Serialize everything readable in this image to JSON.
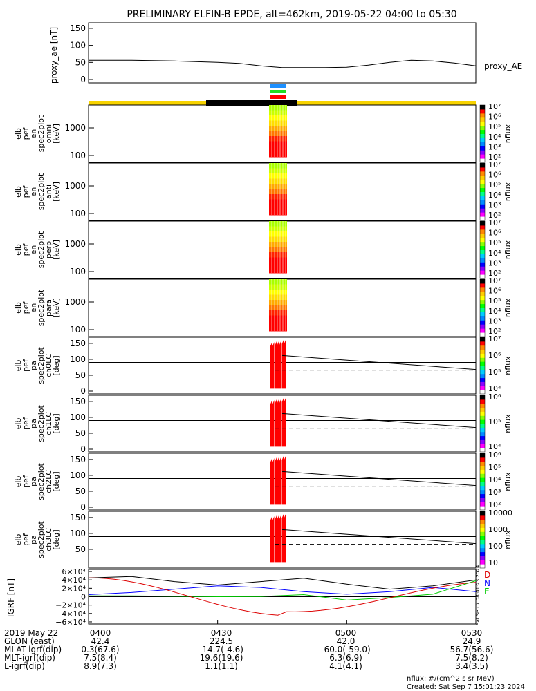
{
  "title": "PRELIMINARY ELFIN-B EPDE, alt=462km, 2019-05-22 04:00 to 05:30",
  "proxy_panel": {
    "ylabel": "proxy_ae\n[nT]",
    "series_label": "proxy_AE",
    "yticks": [
      "150",
      "100",
      "50",
      "0"
    ]
  },
  "status_bar": {
    "colors": {
      "yellow": "#f7d300",
      "black": "#000000",
      "blue": "#1e90ff",
      "green": "#22dd22",
      "red": "#ff0000"
    }
  },
  "spec_panels": [
    {
      "ylabel": [
        "elb",
        "pef",
        "en",
        "spec2plot",
        "omni",
        "[keV]"
      ],
      "yticks": [
        "1000",
        "100"
      ],
      "cbar_label": "nflux"
    },
    {
      "ylabel": [
        "elb",
        "pef",
        "en",
        "spec2plot",
        "anti",
        "[keV]"
      ],
      "yticks": [
        "1000",
        "100"
      ],
      "cbar_label": "nflux"
    },
    {
      "ylabel": [
        "elb",
        "pef",
        "en",
        "spec2plot",
        "perp",
        "[keV]"
      ],
      "yticks": [
        "1000",
        "100"
      ],
      "cbar_label": "nflux"
    },
    {
      "ylabel": [
        "elb",
        "pef",
        "en",
        "spec2plot",
        "para",
        "[keV]"
      ],
      "yticks": [
        "1000",
        "100"
      ],
      "cbar_label": "nflux"
    }
  ],
  "pa_panels": [
    {
      "ylabel": [
        "elb",
        "pef",
        "pa",
        "spec2plot",
        "ch0LC",
        "[deg]"
      ],
      "yticks": [
        "150",
        "100",
        "50",
        "0"
      ],
      "cbar_label": "nflux",
      "cbar_ticks": [
        "10⁷",
        "10⁶",
        "10⁵",
        "10⁴"
      ]
    },
    {
      "ylabel": [
        "elb",
        "pef",
        "pa",
        "spec2plot",
        "ch1LC",
        "[deg]"
      ],
      "yticks": [
        "150",
        "100",
        "50",
        "0"
      ],
      "cbar_label": "nflux",
      "cbar_ticks": [
        "10⁶",
        "10⁵",
        "10⁴"
      ]
    },
    {
      "ylabel": [
        "elb",
        "pef",
        "pa",
        "spec2plot",
        "ch2LC",
        "[deg]"
      ],
      "yticks": [
        "150",
        "100",
        "50",
        "0"
      ],
      "cbar_label": "nflux",
      "cbar_ticks": [
        "10⁶",
        "10⁵",
        "10⁴",
        "10³",
        "10²"
      ]
    },
    {
      "ylabel": [
        "elb",
        "pef",
        "pa",
        "spec2plot",
        "ch3LC",
        "[deg]"
      ],
      "yticks": [
        "150",
        "100",
        "50"
      ],
      "cbar_label": "nflux",
      "cbar_ticks": [
        "10000",
        "1000",
        "100",
        "10"
      ]
    }
  ],
  "spec_cbar_ticks": [
    "10⁷",
    "10⁶",
    "10⁵",
    "10⁴",
    "10³",
    "10²"
  ],
  "igrf_panel": {
    "ylabel": "IGRF\n[nT]",
    "yticks": [
      "6×10⁴",
      "4×10⁴",
      "2×10⁴",
      "0",
      "−2×10⁴",
      "−4×10⁴",
      "−6×10⁴"
    ],
    "legend": [
      "D",
      "N",
      "E"
    ],
    "stamp": "Sat Sep  7 08:01:23 2024"
  },
  "chart_data": [
    {
      "type": "line",
      "title": "PRELIMINARY ELFIN-B EPDE, alt=462km, 2019-05-22 04:00 to 05:30",
      "ylabel": "proxy_ae [nT]",
      "ylim": [
        0,
        160
      ],
      "x_minutes": [
        0,
        10,
        20,
        30,
        35,
        40,
        45,
        50,
        55,
        60,
        65,
        70,
        75,
        80,
        85,
        90
      ],
      "series": [
        {
          "name": "proxy_AE",
          "values": [
            56,
            56,
            54,
            50,
            47,
            40,
            35,
            35,
            35,
            36,
            42,
            50,
            56,
            54,
            48,
            40
          ]
        }
      ]
    },
    {
      "type": "line",
      "ylabel": "IGRF [nT]",
      "ylim": [
        -65000,
        65000
      ],
      "x_minutes": [
        0,
        10,
        20,
        30,
        40,
        50,
        60,
        70,
        80,
        90
      ],
      "series": [
        {
          "name": "D",
          "values": [
            45000,
            48000,
            36000,
            28000,
            36000,
            44000,
            30000,
            18000,
            26000,
            40000
          ]
        },
        {
          "name": "N",
          "values": [
            5000,
            10000,
            18000,
            26000,
            22000,
            12000,
            6000,
            12000,
            22000,
            12000
          ]
        },
        {
          "name": "E",
          "values": [
            2000,
            2000,
            1000,
            0,
            500,
            5000,
            -8000,
            -2000,
            6000,
            38000
          ]
        }
      ]
    }
  ],
  "x_labels": [
    {
      "time": "0400",
      "glon": "42.4",
      "mlat": "0.3(67.6)",
      "mlt": "7.5(8.4)",
      "l": "8.9(7.3)"
    },
    {
      "time": "0430",
      "glon": "224.5",
      "mlat": "-14.7(-4.6)",
      "mlt": "19.6(19.6)",
      "l": "1.1(1.1)"
    },
    {
      "time": "0500",
      "glon": "42.0",
      "mlat": "-60.0(-59.0)",
      "mlt": "6.3(6.9)",
      "l": "4.1(4.1)"
    },
    {
      "time": "0530",
      "glon": "24.9",
      "mlat": "56.7(56.6)",
      "mlt": "7.5(8.2)",
      "l": "3.4(3.5)"
    }
  ],
  "row_labels": {
    "date": "2019 May 22",
    "glon": "GLON (east)",
    "mlat": "MLAT-igrf(dip)",
    "mlt": "MLT-igrf(dip)",
    "l": "L-igrf(dip)"
  },
  "footer": {
    "units": "nflux: #/(cm^2 s sr MeV)",
    "created": "Created: Sat Sep  7 15:01:23 2024"
  }
}
